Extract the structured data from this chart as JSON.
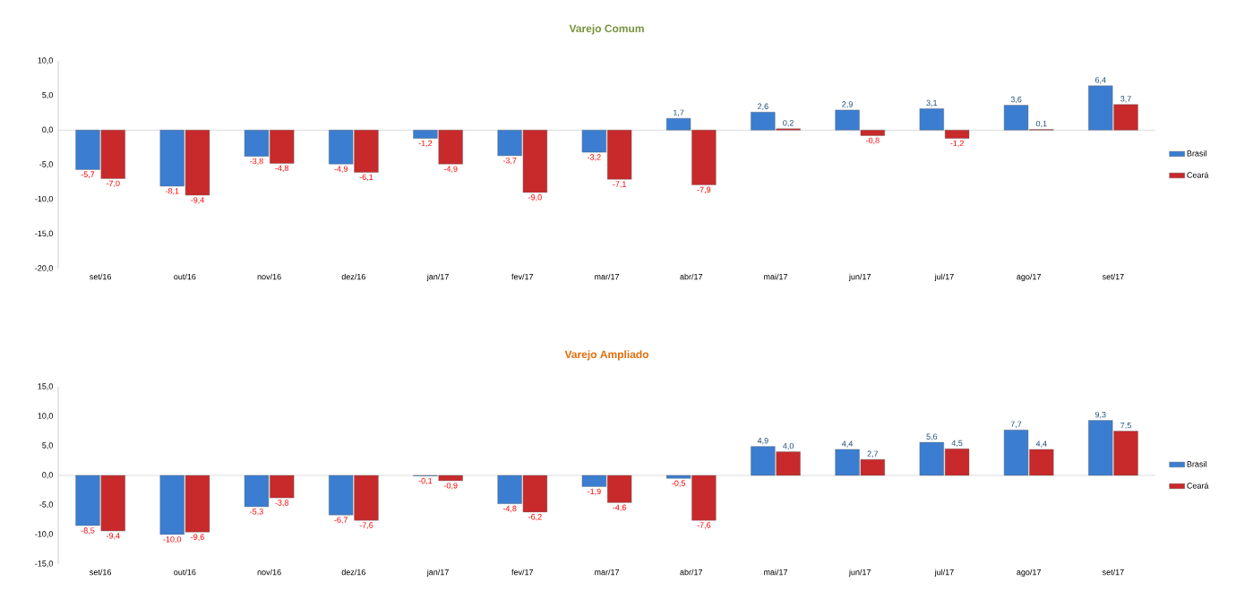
{
  "chart_data": [
    {
      "type": "bar",
      "title": "Varejo Comum",
      "categories": [
        "set/16",
        "out/16",
        "nov/16",
        "dez/16",
        "jan/17",
        "fev/17",
        "mar/17",
        "abr/17",
        "mai/17",
        "jun/17",
        "jul/17",
        "ago/17",
        "set/17"
      ],
      "series": [
        {
          "name": "Brasil",
          "color": "#3b7dd0",
          "values": [
            -5.7,
            -8.1,
            -3.8,
            -4.9,
            -1.2,
            -3.7,
            -3.2,
            1.7,
            2.6,
            2.9,
            3.1,
            3.6,
            6.4
          ],
          "value_labels": [
            "-5,7",
            "-8,1",
            "-3,8",
            "-4,9",
            "-1,2",
            "-3,7",
            "-3,2",
            "1,7",
            "2,6",
            "2,9",
            "3,1",
            "3,6",
            "6,4"
          ]
        },
        {
          "name": "Ceará",
          "color": "#c8292b",
          "values": [
            -7.0,
            -9.4,
            -4.8,
            -6.1,
            -4.9,
            -9.0,
            -7.1,
            -7.9,
            0.2,
            -0.8,
            -1.2,
            0.1,
            3.7
          ],
          "value_labels": [
            "-7,0",
            "-9,4",
            "-4,8",
            "-6,1",
            "-4,9",
            "-9,0",
            "-7,1",
            "-7,9",
            "0,2",
            "-0,8",
            "-1,2",
            "0,1",
            "3,7"
          ]
        }
      ],
      "ylim": [
        -20,
        10
      ],
      "yticks": [
        {
          "value": -20,
          "label": "-20,0"
        },
        {
          "value": -15,
          "label": "-15,0"
        },
        {
          "value": -10,
          "label": "-10,0"
        },
        {
          "value": -5,
          "label": "-5,0"
        },
        {
          "value": 0,
          "label": "0,0"
        },
        {
          "value": 5,
          "label": "5,0"
        },
        {
          "value": 10,
          "label": "10,0"
        }
      ],
      "grid": false,
      "legend": "right",
      "ref_lines": [
        {
          "axis": "y",
          "value": 0,
          "color": "#a6a6a6"
        }
      ]
    },
    {
      "type": "bar",
      "title": "Varejo Ampliado",
      "categories": [
        "set/16",
        "out/16",
        "nov/16",
        "dez/16",
        "jan/17",
        "fev/17",
        "mar/17",
        "abr/17",
        "mai/17",
        "jun/17",
        "jul/17",
        "ago/17",
        "set/17"
      ],
      "series": [
        {
          "name": "Brasil",
          "color": "#3b7dd0",
          "values": [
            -8.5,
            -10.0,
            -5.3,
            -6.7,
            -0.1,
            -4.8,
            -1.9,
            -0.5,
            4.9,
            4.4,
            5.6,
            7.7,
            9.3
          ],
          "value_labels": [
            "-8,5",
            "-10,0",
            "-5,3",
            "-6,7",
            "-0,1",
            "-4,8",
            "-1,9",
            "-0,5",
            "4,9",
            "4,4",
            "5,6",
            "7,7",
            "9,3"
          ]
        },
        {
          "name": "Ceará",
          "color": "#c8292b",
          "values": [
            -9.4,
            -9.6,
            -3.8,
            -7.6,
            -0.9,
            -6.2,
            -4.6,
            -7.6,
            4.0,
            2.7,
            4.5,
            4.4,
            7.5
          ],
          "value_labels": [
            "-9,4",
            "-9,6",
            "-3,8",
            "-7,6",
            "-0,9",
            "-6,2",
            "-4,6",
            "-7,6",
            "4,0",
            "2,7",
            "4,5",
            "4,4",
            "7,5"
          ]
        }
      ],
      "ylim": [
        -15,
        15
      ],
      "yticks": [
        {
          "value": -15,
          "label": "-15,0"
        },
        {
          "value": -10,
          "label": "-10,0"
        },
        {
          "value": -5,
          "label": "-5,0"
        },
        {
          "value": 0,
          "label": "0,0"
        },
        {
          "value": 5,
          "label": "5,0"
        },
        {
          "value": 10,
          "label": "10,0"
        },
        {
          "value": 15,
          "label": "15,0"
        }
      ],
      "grid": false,
      "legend": "right",
      "ref_lines": [
        {
          "axis": "y",
          "value": 0,
          "color": "#a6a6a6"
        }
      ]
    }
  ]
}
